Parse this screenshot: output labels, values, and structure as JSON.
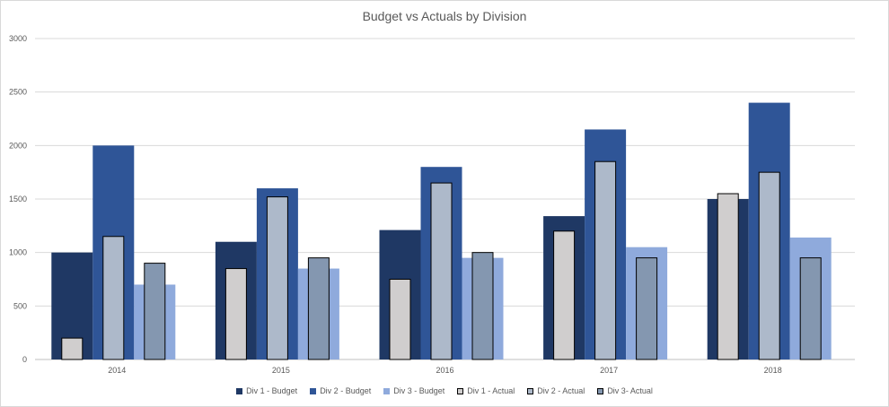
{
  "chart_data": {
    "type": "bar",
    "title": "Budget vs Actuals by Division",
    "categories": [
      "2014",
      "2015",
      "2016",
      "2017",
      "2018"
    ],
    "ylim": [
      0,
      3000
    ],
    "yticks": [
      0,
      500,
      1000,
      1500,
      2000,
      2500,
      3000
    ],
    "grid": true,
    "legend_position": "bottom",
    "series": [
      {
        "name": "Div 1 - Budget",
        "role": "budget",
        "division": 1,
        "color": "#1f3864",
        "values": [
          1000,
          1100,
          1210,
          1340,
          1500
        ]
      },
      {
        "name": "Div 2 - Budget",
        "role": "budget",
        "division": 2,
        "color": "#2f5597",
        "values": [
          2000,
          1600,
          1800,
          2150,
          2400
        ]
      },
      {
        "name": "Div 3 - Budget",
        "role": "budget",
        "division": 3,
        "color": "#8faadc",
        "values": [
          700,
          850,
          950,
          1050,
          1140
        ]
      },
      {
        "name": "Div 1 - Actual",
        "role": "actual",
        "division": 1,
        "color": "#d0cece",
        "values": [
          200,
          850,
          750,
          1200,
          1550
        ]
      },
      {
        "name": "Div 2 - Actual",
        "role": "actual",
        "division": 2,
        "color": "#adb9ca",
        "values": [
          1150,
          1520,
          1650,
          1850,
          1750
        ]
      },
      {
        "name": "Div 3- Actual",
        "role": "actual",
        "division": 3,
        "color": "#8497b0",
        "values": [
          900,
          950,
          1000,
          950,
          950
        ]
      }
    ]
  }
}
